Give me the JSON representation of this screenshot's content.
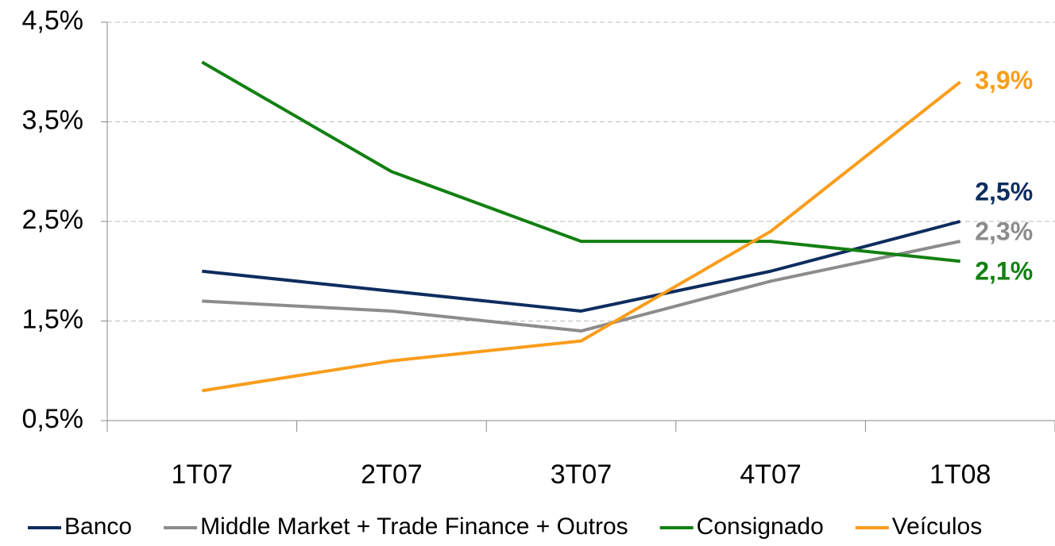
{
  "chart_data": {
    "type": "line",
    "categories": [
      "1T07",
      "2T07",
      "3T07",
      "4T07",
      "1T08"
    ],
    "series": [
      {
        "name": "Banco",
        "color": "#0e2d5e",
        "values": [
          2.0,
          1.8,
          1.6,
          2.0,
          2.5
        ],
        "value_labels": [
          null,
          null,
          null,
          null,
          "2,5%"
        ]
      },
      {
        "name": "Middle Market + Trade Finance + Outros",
        "color": "#8c8c8c",
        "values": [
          1.7,
          1.6,
          1.4,
          1.9,
          2.3
        ],
        "value_labels": [
          null,
          null,
          null,
          null,
          "2,3%"
        ]
      },
      {
        "name": "Consignado",
        "color": "#128012",
        "values": [
          4.1,
          3.0,
          2.3,
          2.3,
          2.1
        ],
        "value_labels": [
          null,
          null,
          null,
          null,
          "2,1%"
        ]
      },
      {
        "name": "Veículos",
        "color": "#f99d1c",
        "values": [
          0.8,
          1.1,
          1.3,
          2.4,
          3.9
        ],
        "value_labels": [
          null,
          null,
          null,
          null,
          "3,9%"
        ]
      }
    ],
    "ylim": [
      0.5,
      4.5
    ],
    "yticks": [
      {
        "value": 0.5,
        "label": "0,5%"
      },
      {
        "value": 1.5,
        "label": "1,5%"
      },
      {
        "value": 2.5,
        "label": "2,5%"
      },
      {
        "value": 3.5,
        "label": "3,5%"
      },
      {
        "value": 4.5,
        "label": "4,5%"
      }
    ],
    "grid": true,
    "legend": "bottom"
  }
}
